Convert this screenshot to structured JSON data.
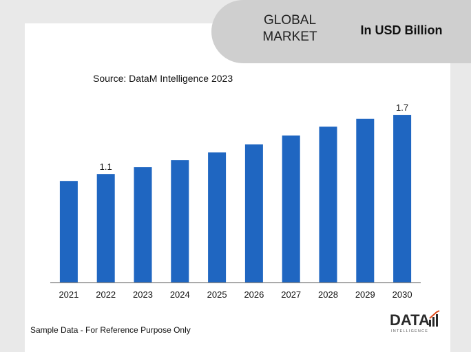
{
  "header": {
    "market_label": "GLOBAL MARKET",
    "unit_label": "In USD Billion"
  },
  "source": "Source: DataM Intelligence 2023",
  "footer": "Sample Data - For Reference Purpose Only",
  "logo": {
    "word": "DATA",
    "tagline": "INTELLIGENCE"
  },
  "colors": {
    "bar": "#1f66c1",
    "background": "#e9e9e9",
    "pill": "#cfcfcf",
    "logo_accent": "#e04b1c"
  },
  "chart_data": {
    "type": "bar",
    "categories": [
      "2021",
      "2022",
      "2023",
      "2024",
      "2025",
      "2026",
      "2027",
      "2028",
      "2029",
      "2030"
    ],
    "values": [
      1.03,
      1.1,
      1.17,
      1.24,
      1.32,
      1.4,
      1.49,
      1.58,
      1.66,
      1.7
    ],
    "data_labels": [
      {
        "index": 1,
        "text": "1.1"
      },
      {
        "index": 9,
        "text": "1.7"
      }
    ],
    "ylim": [
      0,
      2.0
    ],
    "grid": false,
    "legend": "none"
  }
}
